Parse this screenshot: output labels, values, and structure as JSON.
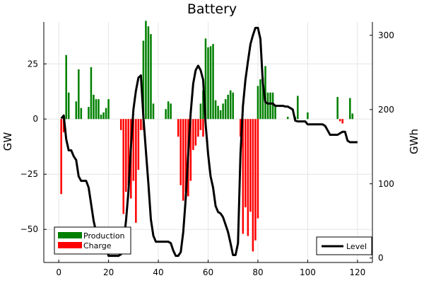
{
  "chart_data": {
    "type": "bar+line",
    "title": "Battery",
    "ylabel": "GW",
    "ylabel_right": "GWh",
    "xlabel": "",
    "xlim": [
      -6,
      126
    ],
    "ylim": [
      -65,
      44
    ],
    "y2lim": [
      -6,
      318
    ],
    "x_ticks": [
      0,
      20,
      40,
      60,
      80,
      100,
      120
    ],
    "y_ticks": [
      -50,
      -25,
      0,
      25
    ],
    "y2_ticks": [
      0,
      100,
      200,
      300
    ],
    "grid": true,
    "legend_left": [
      {
        "name": "Production",
        "color": "#008000"
      },
      {
        "name": "Charge",
        "color": "#ff0000"
      }
    ],
    "legend_right": [
      {
        "name": "Level",
        "color": "#000000"
      }
    ],
    "production": {
      "name": "Production",
      "color": "#008000",
      "x": [
        3,
        4,
        7,
        8,
        9,
        12,
        13,
        14,
        15,
        16,
        17,
        18,
        19,
        20,
        34,
        35,
        36,
        37,
        38,
        43,
        44,
        45,
        57,
        58,
        59,
        60,
        61,
        62,
        63,
        64,
        65,
        66,
        67,
        68,
        69,
        70,
        80,
        81,
        82,
        83,
        84,
        85,
        86,
        87,
        92,
        95,
        96,
        100,
        108,
        112,
        117,
        118
      ],
      "values": [
        29,
        12,
        8,
        22.5,
        5,
        5.5,
        23.5,
        11,
        9,
        9,
        2,
        3,
        5,
        9,
        35.5,
        44.5,
        42,
        38.5,
        7,
        4.5,
        8,
        7,
        7,
        13,
        36.5,
        32.5,
        33,
        34,
        8.5,
        6,
        4,
        7,
        9,
        11,
        13,
        12,
        15,
        18,
        19,
        24,
        12,
        12,
        12,
        6,
        1,
        1,
        10.5,
        3,
        0,
        10,
        9.5,
        2.5
      ]
    },
    "charge": {
      "name": "Charge",
      "color": "#ff0000",
      "x": [
        1,
        2,
        25,
        26,
        27,
        28,
        29,
        30,
        31,
        32,
        33,
        34,
        48,
        49,
        50,
        51,
        52,
        53,
        54,
        55,
        56,
        57,
        58,
        73,
        74,
        75,
        76,
        77,
        78,
        79,
        80,
        113,
        114
      ],
      "values": [
        -34,
        -6,
        -5,
        -43,
        -33,
        -30,
        -36,
        -28,
        -47,
        -23,
        -5,
        -5,
        -8,
        -30,
        -37,
        -33,
        -35,
        -28,
        -14,
        -12,
        -8,
        -5,
        -8,
        -8,
        -52,
        -40,
        -53,
        -42,
        -60,
        -55,
        -45,
        -1,
        -2
      ]
    },
    "level": {
      "name": "Level",
      "color": "#000000",
      "x": [
        1,
        2,
        3,
        4,
        5,
        6,
        7,
        8,
        9,
        10,
        11,
        12,
        13,
        14,
        15,
        16,
        17,
        18,
        19,
        20,
        21,
        22,
        23,
        24,
        25,
        26,
        27,
        28,
        29,
        30,
        31,
        32,
        33,
        34,
        35,
        36,
        37,
        38,
        39,
        40,
        41,
        42,
        43,
        44,
        45,
        46,
        47,
        48,
        49,
        50,
        51,
        52,
        53,
        54,
        55,
        56,
        57,
        58,
        59,
        60,
        61,
        62,
        63,
        64,
        65,
        66,
        67,
        68,
        69,
        70,
        71,
        72,
        73,
        74,
        75,
        76,
        77,
        78,
        79,
        80,
        81,
        82,
        83,
        84,
        85,
        86,
        87,
        88,
        89,
        90,
        91,
        92,
        93,
        94,
        95,
        96,
        97,
        98,
        99,
        100,
        101,
        102,
        103,
        104,
        105,
        106,
        107,
        108,
        109,
        110,
        111,
        112,
        113,
        114,
        115,
        116,
        117,
        118,
        119,
        120
      ],
      "values": [
        188,
        192,
        160,
        145,
        145,
        137,
        132,
        110,
        104,
        104,
        104,
        95,
        73,
        50,
        35,
        24,
        20,
        17,
        15,
        3,
        3,
        3,
        3,
        3,
        5,
        20,
        50,
        90,
        150,
        200,
        225,
        243,
        246,
        190,
        145,
        100,
        52,
        30,
        22,
        22,
        22,
        22,
        22,
        22,
        20,
        10,
        3,
        3,
        8,
        35,
        80,
        140,
        195,
        235,
        253,
        259,
        253,
        240,
        180,
        140,
        110,
        95,
        70,
        62,
        60,
        55,
        45,
        35,
        20,
        4,
        4,
        20,
        140,
        205,
        240,
        265,
        288,
        300,
        310,
        310,
        295,
        235,
        210,
        208,
        208,
        208,
        205,
        205,
        205,
        205,
        204,
        204,
        202,
        200,
        185,
        184,
        184,
        184,
        184,
        180,
        180,
        180,
        180,
        180,
        180,
        180,
        178,
        172,
        166,
        166,
        166,
        166,
        168,
        170,
        170,
        158,
        156,
        156,
        156,
        156
      ]
    }
  }
}
